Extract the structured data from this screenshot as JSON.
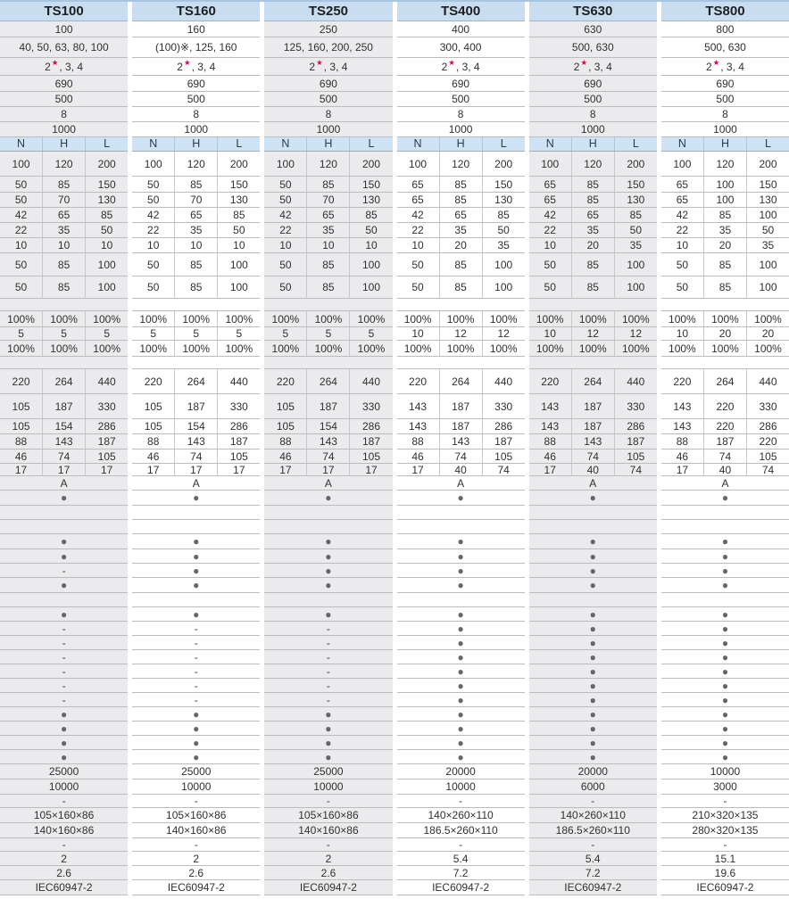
{
  "models": [
    "TS100",
    "TS160",
    "TS250",
    "TS400",
    "TS630",
    "TS800"
  ],
  "symbols": {
    "bullet": "●",
    "dash": "-",
    "star": "★",
    "ref_mark": "※",
    "category": "A"
  },
  "palette": {
    "header_blue": "#c8ddf0",
    "subhead_blue": "#cfe3f6",
    "column_gray": "#ebebed",
    "column_white": "#ffffff",
    "grid_line": "#bcbcbc",
    "sub_separator": "#c9c9c9",
    "text": "#303030",
    "bullet_gray": "#64666e",
    "star_red": "#e50045",
    "top_border_blue": "#a9c4de"
  },
  "table": {
    "rows": [
      {
        "t": "head",
        "h": 22,
        "cells": [
          "TS100",
          "TS160",
          "TS250",
          "TS400",
          "TS630",
          "TS800"
        ]
      },
      {
        "t": "model",
        "h": 18,
        "cells": [
          "100",
          "160",
          "250",
          "400",
          "630",
          "800"
        ]
      },
      {
        "t": "model",
        "h": 23,
        "cells": [
          "40, 50, 63, 80, 100",
          "(100)※, 125, 160",
          "125, 160, 200, 250",
          "300, 400",
          "500, 630",
          "500, 630"
        ]
      },
      {
        "t": "model",
        "h": 20,
        "cells": [
          "2★, 3, 4",
          "2★, 3, 4",
          "2★, 3, 4",
          "2★, 3, 4",
          "2★, 3, 4",
          "2★, 3, 4"
        ]
      },
      {
        "t": "model",
        "h": 18,
        "cells": [
          "690",
          "690",
          "690",
          "690",
          "690",
          "690"
        ]
      },
      {
        "t": "model",
        "h": 17,
        "cells": [
          "500",
          "500",
          "500",
          "500",
          "500",
          "500"
        ]
      },
      {
        "t": "model",
        "h": 17,
        "cells": [
          "8",
          "8",
          "8",
          "8",
          "8",
          "8"
        ]
      },
      {
        "t": "model",
        "h": 17,
        "cells": [
          "1000",
          "1000",
          "1000",
          "1000",
          "1000",
          "1000"
        ]
      },
      {
        "t": "subhead",
        "h": 16,
        "cells": [
          [
            "N",
            "H",
            "L"
          ],
          [
            "N",
            "H",
            "L"
          ],
          [
            "N",
            "H",
            "L"
          ],
          [
            "N",
            "H",
            "L"
          ],
          [
            "N",
            "H",
            "L"
          ],
          [
            "N",
            "H",
            "L"
          ]
        ]
      },
      {
        "t": "sub",
        "h": 28,
        "cells": [
          [
            "100",
            "120",
            "200"
          ],
          [
            "100",
            "120",
            "200"
          ],
          [
            "100",
            "120",
            "200"
          ],
          [
            "100",
            "120",
            "200"
          ],
          [
            "100",
            "120",
            "200"
          ],
          [
            "100",
            "120",
            "200"
          ]
        ]
      },
      {
        "t": "sub",
        "h": 18,
        "cells": [
          [
            "50",
            "85",
            "150"
          ],
          [
            "50",
            "85",
            "150"
          ],
          [
            "50",
            "85",
            "150"
          ],
          [
            "65",
            "85",
            "150"
          ],
          [
            "65",
            "85",
            "150"
          ],
          [
            "65",
            "100",
            "150"
          ]
        ]
      },
      {
        "t": "sub",
        "h": 17,
        "cells": [
          [
            "50",
            "70",
            "130"
          ],
          [
            "50",
            "70",
            "130"
          ],
          [
            "50",
            "70",
            "130"
          ],
          [
            "65",
            "85",
            "130"
          ],
          [
            "65",
            "85",
            "130"
          ],
          [
            "65",
            "100",
            "130"
          ]
        ]
      },
      {
        "t": "sub",
        "h": 17,
        "cells": [
          [
            "42",
            "65",
            "85"
          ],
          [
            "42",
            "65",
            "85"
          ],
          [
            "42",
            "65",
            "85"
          ],
          [
            "42",
            "65",
            "85"
          ],
          [
            "42",
            "65",
            "85"
          ],
          [
            "42",
            "85",
            "100"
          ]
        ]
      },
      {
        "t": "sub",
        "h": 17,
        "cells": [
          [
            "22",
            "35",
            "50"
          ],
          [
            "22",
            "35",
            "50"
          ],
          [
            "22",
            "35",
            "50"
          ],
          [
            "22",
            "35",
            "50"
          ],
          [
            "22",
            "35",
            "50"
          ],
          [
            "22",
            "35",
            "50"
          ]
        ]
      },
      {
        "t": "sub",
        "h": 17,
        "cells": [
          [
            "10",
            "10",
            "10"
          ],
          [
            "10",
            "10",
            "10"
          ],
          [
            "10",
            "10",
            "10"
          ],
          [
            "10",
            "20",
            "35"
          ],
          [
            "10",
            "20",
            "35"
          ],
          [
            "10",
            "20",
            "35"
          ]
        ]
      },
      {
        "t": "sub",
        "h": 26,
        "cells": [
          [
            "50",
            "85",
            "100"
          ],
          [
            "50",
            "85",
            "100"
          ],
          [
            "50",
            "85",
            "100"
          ],
          [
            "50",
            "85",
            "100"
          ],
          [
            "50",
            "85",
            "100"
          ],
          [
            "50",
            "85",
            "100"
          ]
        ]
      },
      {
        "t": "sub",
        "h": 25,
        "cells": [
          [
            "50",
            "85",
            "100"
          ],
          [
            "50",
            "85",
            "100"
          ],
          [
            "50",
            "85",
            "100"
          ],
          [
            "50",
            "85",
            "100"
          ],
          [
            "50",
            "85",
            "100"
          ],
          [
            "50",
            "85",
            "100"
          ]
        ]
      },
      {
        "t": "blank",
        "h": 14
      },
      {
        "t": "sub",
        "h": 18,
        "cells": [
          [
            "100%",
            "100%",
            "100%"
          ],
          [
            "100%",
            "100%",
            "100%"
          ],
          [
            "100%",
            "100%",
            "100%"
          ],
          [
            "100%",
            "100%",
            "100%"
          ],
          [
            "100%",
            "100%",
            "100%"
          ],
          [
            "100%",
            "100%",
            "100%"
          ]
        ]
      },
      {
        "t": "sub",
        "h": 15,
        "cells": [
          [
            "5",
            "5",
            "5"
          ],
          [
            "5",
            "5",
            "5"
          ],
          [
            "5",
            "5",
            "5"
          ],
          [
            "10",
            "12",
            "12"
          ],
          [
            "10",
            "12",
            "12"
          ],
          [
            "10",
            "20",
            "20"
          ]
        ]
      },
      {
        "t": "sub",
        "h": 18,
        "cells": [
          [
            "100%",
            "100%",
            "100%"
          ],
          [
            "100%",
            "100%",
            "100%"
          ],
          [
            "100%",
            "100%",
            "100%"
          ],
          [
            "100%",
            "100%",
            "100%"
          ],
          [
            "100%",
            "100%",
            "100%"
          ],
          [
            "100%",
            "100%",
            "100%"
          ]
        ]
      },
      {
        "t": "blank",
        "h": 14
      },
      {
        "t": "sub",
        "h": 28,
        "cells": [
          [
            "220",
            "264",
            "440"
          ],
          [
            "220",
            "264",
            "440"
          ],
          [
            "220",
            "264",
            "440"
          ],
          [
            "220",
            "264",
            "440"
          ],
          [
            "220",
            "264",
            "440"
          ],
          [
            "220",
            "264",
            "440"
          ]
        ]
      },
      {
        "t": "sub",
        "h": 28,
        "cells": [
          [
            "105",
            "187",
            "330"
          ],
          [
            "105",
            "187",
            "330"
          ],
          [
            "105",
            "187",
            "330"
          ],
          [
            "143",
            "187",
            "330"
          ],
          [
            "143",
            "187",
            "330"
          ],
          [
            "143",
            "220",
            "330"
          ]
        ]
      },
      {
        "t": "sub",
        "h": 17,
        "cells": [
          [
            "105",
            "154",
            "286"
          ],
          [
            "105",
            "154",
            "286"
          ],
          [
            "105",
            "154",
            "286"
          ],
          [
            "143",
            "187",
            "286"
          ],
          [
            "143",
            "187",
            "286"
          ],
          [
            "143",
            "220",
            "286"
          ]
        ]
      },
      {
        "t": "sub",
        "h": 17,
        "cells": [
          [
            "88",
            "143",
            "187"
          ],
          [
            "88",
            "143",
            "187"
          ],
          [
            "88",
            "143",
            "187"
          ],
          [
            "88",
            "143",
            "187"
          ],
          [
            "88",
            "143",
            "187"
          ],
          [
            "88",
            "187",
            "220"
          ]
        ]
      },
      {
        "t": "sub",
        "h": 16,
        "cells": [
          [
            "46",
            "74",
            "105"
          ],
          [
            "46",
            "74",
            "105"
          ],
          [
            "46",
            "74",
            "105"
          ],
          [
            "46",
            "74",
            "105"
          ],
          [
            "46",
            "74",
            "105"
          ],
          [
            "46",
            "74",
            "105"
          ]
        ]
      },
      {
        "t": "sub",
        "h": 14,
        "cells": [
          [
            "17",
            "17",
            "17"
          ],
          [
            "17",
            "17",
            "17"
          ],
          [
            "17",
            "17",
            "17"
          ],
          [
            "17",
            "40",
            "74"
          ],
          [
            "17",
            "40",
            "74"
          ],
          [
            "17",
            "40",
            "74"
          ]
        ]
      },
      {
        "t": "model",
        "h": 16,
        "cells": [
          "A",
          "A",
          "A",
          "A",
          "A",
          "A"
        ]
      },
      {
        "t": "model",
        "h": 17,
        "cells": [
          "●",
          "●",
          "●",
          "●",
          "●",
          "●"
        ]
      },
      {
        "t": "blank",
        "h": 16
      },
      {
        "t": "blank",
        "h": 16
      },
      {
        "t": "model",
        "h": 17,
        "cells": [
          "●",
          "●",
          "●",
          "●",
          "●",
          "●"
        ]
      },
      {
        "t": "model",
        "h": 16,
        "cells": [
          "●",
          "●",
          "●",
          "●",
          "●",
          "●"
        ]
      },
      {
        "t": "model",
        "h": 16,
        "cells": [
          "-",
          "●",
          "●",
          "●",
          "●",
          "●"
        ]
      },
      {
        "t": "model",
        "h": 17,
        "cells": [
          "●",
          "●",
          "●",
          "●",
          "●",
          "●"
        ]
      },
      {
        "t": "blank",
        "h": 16
      },
      {
        "t": "model",
        "h": 16,
        "cells": [
          "●",
          "●",
          "●",
          "●",
          "●",
          "●"
        ]
      },
      {
        "t": "model",
        "h": 16,
        "cells": [
          "-",
          "-",
          "-",
          "●",
          "●",
          "●"
        ]
      },
      {
        "t": "model",
        "h": 16,
        "cells": [
          "-",
          "-",
          "-",
          "●",
          "●",
          "●"
        ]
      },
      {
        "t": "model",
        "h": 16,
        "cells": [
          "-",
          "-",
          "-",
          "●",
          "●",
          "●"
        ]
      },
      {
        "t": "model",
        "h": 16,
        "cells": [
          "-",
          "-",
          "-",
          "●",
          "●",
          "●"
        ]
      },
      {
        "t": "model",
        "h": 16,
        "cells": [
          "-",
          "-",
          "-",
          "●",
          "●",
          "●"
        ]
      },
      {
        "t": "model",
        "h": 16,
        "cells": [
          "-",
          "-",
          "-",
          "●",
          "●",
          "●"
        ]
      },
      {
        "t": "model",
        "h": 16,
        "cells": [
          "●",
          "●",
          "●",
          "●",
          "●",
          "●"
        ]
      },
      {
        "t": "model",
        "h": 16,
        "cells": [
          "●",
          "●",
          "●",
          "●",
          "●",
          "●"
        ]
      },
      {
        "t": "model",
        "h": 16,
        "cells": [
          "●",
          "●",
          "●",
          "●",
          "●",
          "●"
        ]
      },
      {
        "t": "model",
        "h": 16,
        "cells": [
          "●",
          "●",
          "●",
          "●",
          "●",
          "●"
        ]
      },
      {
        "t": "model",
        "h": 17,
        "cells": [
          "25000",
          "25000",
          "25000",
          "20000",
          "20000",
          "10000"
        ]
      },
      {
        "t": "model",
        "h": 17,
        "cells": [
          "10000",
          "10000",
          "10000",
          "10000",
          "6000",
          "3000"
        ]
      },
      {
        "t": "model",
        "h": 15,
        "cells": [
          "-",
          "-",
          "-",
          "-",
          "-",
          "-"
        ]
      },
      {
        "t": "model",
        "h": 17,
        "cells": [
          "105×160×86",
          "105×160×86",
          "105×160×86",
          "140×260×110",
          "140×260×110",
          "210×320×135"
        ]
      },
      {
        "t": "model",
        "h": 17,
        "cells": [
          "140×160×86",
          "140×160×86",
          "140×160×86",
          "186.5×260×110",
          "186.5×260×110",
          "280×320×135"
        ]
      },
      {
        "t": "model",
        "h": 15,
        "cells": [
          "-",
          "-",
          "-",
          "-",
          "-",
          "-"
        ]
      },
      {
        "t": "model",
        "h": 16,
        "cells": [
          "2",
          "2",
          "2",
          "5.4",
          "5.4",
          "15.1"
        ]
      },
      {
        "t": "model",
        "h": 16,
        "cells": [
          "2.6",
          "2.6",
          "2.6",
          "7.2",
          "7.2",
          "19.6"
        ]
      },
      {
        "t": "model",
        "h": 17,
        "cells": [
          "IEC60947-2",
          "IEC60947-2",
          "IEC60947-2",
          "IEC60947-2",
          "IEC60947-2",
          "IEC60947-2"
        ]
      },
      {
        "t": "footer",
        "h": 4
      }
    ]
  }
}
